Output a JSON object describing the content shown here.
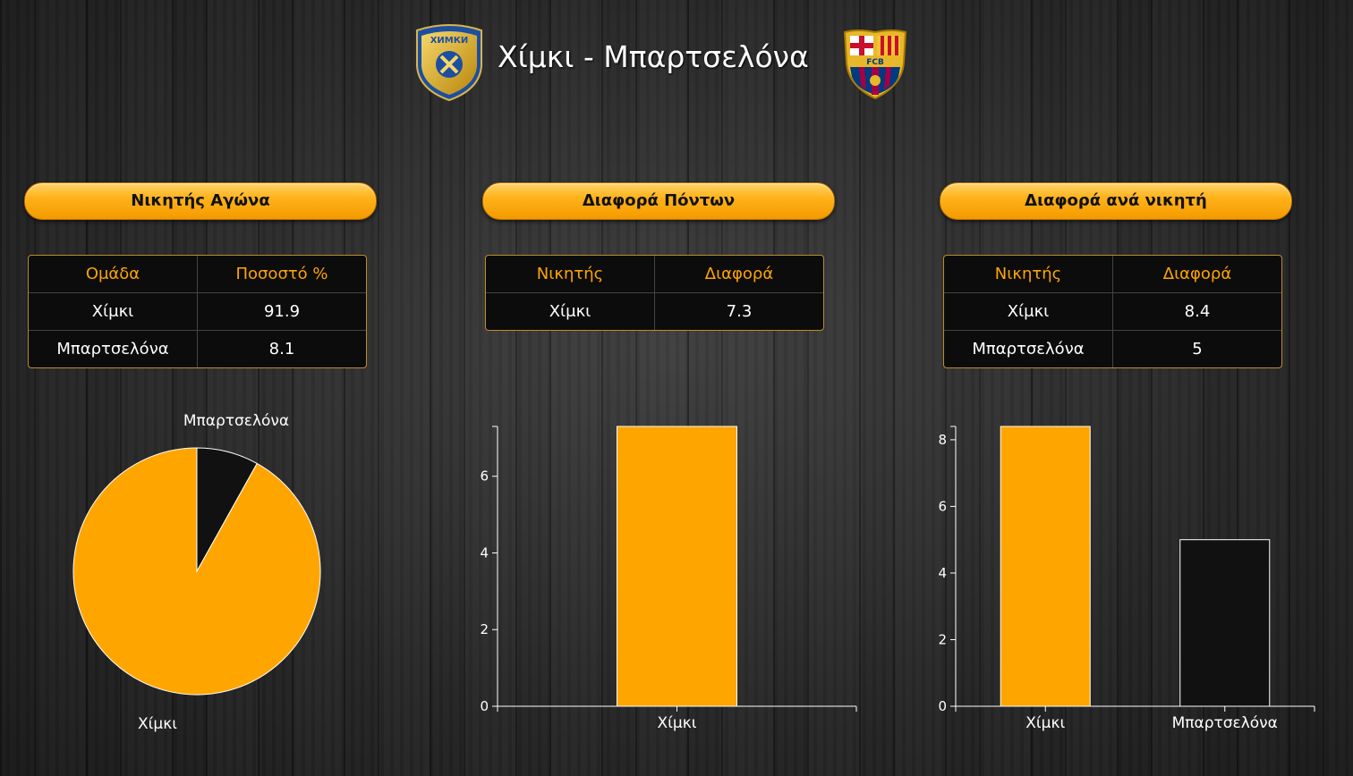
{
  "header": {
    "title": "Χίμκι - Μπαρτσελόνα",
    "home_logo_icon": "khimki-logo-icon",
    "away_logo_icon": "fc-barcelona-logo-icon",
    "home_logo_text": "ХИМКИ",
    "away_logo_text": "FCB"
  },
  "colors": {
    "accent": "#ffa500",
    "dark": "#111111"
  },
  "panels": [
    {
      "title": "Νικητής Αγώνα",
      "table": {
        "headers": [
          "Ομάδα",
          "Ποσοστό %"
        ],
        "rows": [
          [
            "Χίμκι",
            "91.9"
          ],
          [
            "Μπαρτσελόνα",
            "8.1"
          ]
        ]
      }
    },
    {
      "title": "Διαφορά Πόντων",
      "table": {
        "headers": [
          "Νικητής",
          "Διαφορά"
        ],
        "rows": [
          [
            "Χίμκι",
            "7.3"
          ]
        ]
      }
    },
    {
      "title": "Διαφορά ανά νικητή",
      "table": {
        "headers": [
          "Νικητής",
          "Διαφορά"
        ],
        "rows": [
          [
            "Χίμκι",
            "8.4"
          ],
          [
            "Μπαρτσελόνα",
            "5"
          ]
        ]
      }
    }
  ],
  "chart_data": [
    {
      "type": "pie",
      "categories": [
        "Χίμκι",
        "Μπαρτσελόνα"
      ],
      "values": [
        91.9,
        8.1
      ],
      "colors": [
        "#ffa500",
        "#111111"
      ],
      "title": ""
    },
    {
      "type": "bar",
      "categories": [
        "Χίμκι"
      ],
      "values": [
        7.3
      ],
      "colors": [
        "#ffa500"
      ],
      "yticks": [
        0,
        2,
        4,
        6
      ],
      "ylim": [
        0,
        7.3
      ],
      "title": "",
      "xlabel": "",
      "ylabel": ""
    },
    {
      "type": "bar",
      "categories": [
        "Χίμκι",
        "Μπαρτσελόνα"
      ],
      "values": [
        8.4,
        5
      ],
      "colors": [
        "#ffa500",
        "#111111"
      ],
      "yticks": [
        0,
        2,
        4,
        6,
        8
      ],
      "ylim": [
        0,
        8.4
      ],
      "title": "",
      "xlabel": "",
      "ylabel": ""
    }
  ]
}
